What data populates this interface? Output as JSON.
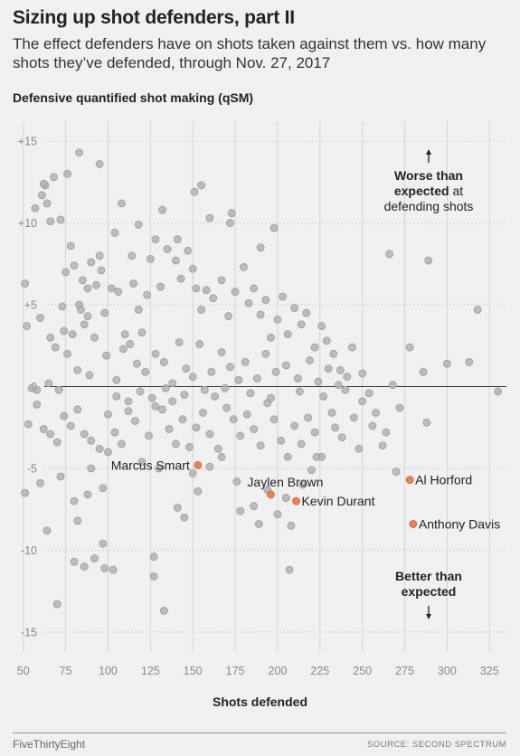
{
  "title": "Sizing up shot defenders, part II",
  "subtitle": "The effect defenders have on shots taken against them vs. how many shots they’ve defended, through Nov. 27, 2017",
  "footer": {
    "brand": "FiveThirtyEight",
    "source": "SOURCE: SECOND SPECTRUM"
  },
  "colors": {
    "background": "#f0f0f0",
    "grey_point": "#b3b3b3",
    "highlight_point": "#e8825a"
  },
  "chart_data": {
    "type": "scatter",
    "ylabel": "Defensive quantified shot making (qSM)",
    "xlabel": "Shots defended",
    "xlim": [
      40,
      335
    ],
    "ylim": [
      -16,
      16
    ],
    "x_ticks": [
      {
        "value": 50,
        "label": "50"
      },
      {
        "value": 75,
        "label": "75"
      },
      {
        "value": 100,
        "label": "100"
      },
      {
        "value": 125,
        "label": "125"
      },
      {
        "value": 150,
        "label": "150"
      },
      {
        "value": 175,
        "label": "175"
      },
      {
        "value": 200,
        "label": "200"
      },
      {
        "value": 225,
        "label": "225"
      },
      {
        "value": 250,
        "label": "250"
      },
      {
        "value": 275,
        "label": "275"
      },
      {
        "value": 300,
        "label": "300"
      },
      {
        "value": 325,
        "label": "325"
      }
    ],
    "y_ticks": [
      {
        "value": 15,
        "label": "+15"
      },
      {
        "value": 10,
        "label": "+10"
      },
      {
        "value": 5,
        "label": "+5"
      },
      {
        "value": 0,
        "label": "0"
      },
      {
        "value": -5,
        "label": "-5"
      },
      {
        "value": -10,
        "label": "-10"
      },
      {
        "value": -15,
        "label": "-15"
      }
    ],
    "grid": "vertical",
    "annotations": [
      {
        "lines": [
          "Worse than",
          "expected at",
          "defending shots"
        ],
        "bold_words": [
          "Worse than",
          "expected"
        ],
        "arrow": "up"
      },
      {
        "lines": [
          "Better than",
          "expected"
        ],
        "bold_words": [
          "Better than",
          "expected"
        ],
        "arrow": "down"
      }
    ],
    "highlighted": [
      {
        "name": "Marcus Smart",
        "x": 153,
        "y": -4.8,
        "label_side": "left"
      },
      {
        "name": "Jaylen Brown",
        "x": 196,
        "y": -6.6,
        "label_side": "above"
      },
      {
        "name": "Kevin Durant",
        "x": 211,
        "y": -7.0,
        "label_side": "right"
      },
      {
        "name": "Al Horford",
        "x": 278,
        "y": -5.7,
        "label_side": "right"
      },
      {
        "name": "Anthony Davis",
        "x": 280,
        "y": -8.4,
        "label_side": "right"
      }
    ],
    "points": [
      [
        63,
        12.3
      ],
      [
        61,
        11.7
      ],
      [
        62,
        12.4
      ],
      [
        68,
        12.8
      ],
      [
        57,
        10.9
      ],
      [
        64,
        11.2
      ],
      [
        66,
        10.1
      ],
      [
        72,
        10.2
      ],
      [
        83,
        14.3
      ],
      [
        95,
        13.6
      ],
      [
        51,
        6.3
      ],
      [
        52,
        3.7
      ],
      [
        60,
        4.2
      ],
      [
        75,
        7.0
      ],
      [
        78,
        8.6
      ],
      [
        80,
        7.4
      ],
      [
        83,
        5.0
      ],
      [
        85,
        6.5
      ],
      [
        88,
        6.0
      ],
      [
        90,
        7.6
      ],
      [
        93,
        6.2
      ],
      [
        95,
        8.0
      ],
      [
        96,
        7.1
      ],
      [
        88,
        4.3
      ],
      [
        84,
        4.7
      ],
      [
        79,
        3.2
      ],
      [
        76,
        2.0
      ],
      [
        82,
        1.0
      ],
      [
        86,
        3.8
      ],
      [
        92,
        3.0
      ],
      [
        98,
        4.5
      ],
      [
        102,
        6.0
      ],
      [
        106,
        5.8
      ],
      [
        110,
        3.2
      ],
      [
        113,
        2.6
      ],
      [
        115,
        6.3
      ],
      [
        118,
        4.7
      ],
      [
        120,
        3.3
      ],
      [
        123,
        5.6
      ],
      [
        125,
        7.8
      ],
      [
        128,
        9.0
      ],
      [
        131,
        6.1
      ],
      [
        135,
        8.4
      ],
      [
        140,
        7.7
      ],
      [
        143,
        6.6
      ],
      [
        147,
        8.3
      ],
      [
        150,
        7.2
      ],
      [
        152,
        6.0
      ],
      [
        155,
        4.7
      ],
      [
        158,
        5.9
      ],
      [
        162,
        5.4
      ],
      [
        167,
        6.5
      ],
      [
        171,
        4.3
      ],
      [
        175,
        5.8
      ],
      [
        180,
        7.3
      ],
      [
        183,
        5.1
      ],
      [
        186,
        6.0
      ],
      [
        190,
        4.4
      ],
      [
        193,
        5.3
      ],
      [
        196,
        3.0
      ],
      [
        200,
        4.1
      ],
      [
        203,
        5.5
      ],
      [
        206,
        3.2
      ],
      [
        210,
        4.8
      ],
      [
        214,
        3.8
      ],
      [
        217,
        4.5
      ],
      [
        222,
        2.4
      ],
      [
        226,
        3.7
      ],
      [
        229,
        2.8
      ],
      [
        233,
        2.0
      ],
      [
        237,
        1.0
      ],
      [
        244,
        2.4
      ],
      [
        250,
        0.8
      ],
      [
        266,
        8.1
      ],
      [
        289,
        7.7
      ],
      [
        278,
        2.4
      ],
      [
        286,
        0.9
      ],
      [
        300,
        1.4
      ],
      [
        313,
        1.5
      ],
      [
        318,
        4.7
      ],
      [
        330,
        -0.3
      ],
      [
        73,
        4.9
      ],
      [
        69,
        2.4
      ],
      [
        71,
        -0.2
      ],
      [
        65,
        0.2
      ],
      [
        58,
        -0.2
      ],
      [
        55,
        -0.1
      ],
      [
        53,
        -2.3
      ],
      [
        58,
        -1.1
      ],
      [
        62,
        -2.6
      ],
      [
        66,
        -2.9
      ],
      [
        70,
        -3.4
      ],
      [
        74,
        -1.8
      ],
      [
        78,
        -2.4
      ],
      [
        82,
        -1.4
      ],
      [
        86,
        -2.9
      ],
      [
        90,
        -3.3
      ],
      [
        95,
        -3.8
      ],
      [
        100,
        -1.7
      ],
      [
        104,
        -2.8
      ],
      [
        108,
        -3.5
      ],
      [
        112,
        -1.5
      ],
      [
        116,
        -2.1
      ],
      [
        120,
        -4.6
      ],
      [
        124,
        -3.0
      ],
      [
        128,
        -1.2
      ],
      [
        132,
        -1.4
      ],
      [
        136,
        -2.6
      ],
      [
        140,
        -3.5
      ],
      [
        144,
        -2.0
      ],
      [
        148,
        -3.7
      ],
      [
        152,
        -2.5
      ],
      [
        156,
        -1.6
      ],
      [
        160,
        -2.9
      ],
      [
        165,
        -3.8
      ],
      [
        170,
        -1.3
      ],
      [
        174,
        -2.0
      ],
      [
        178,
        -3.0
      ],
      [
        182,
        -1.7
      ],
      [
        186,
        -2.6
      ],
      [
        190,
        -3.6
      ],
      [
        194,
        -1.0
      ],
      [
        198,
        -2.0
      ],
      [
        202,
        -3.3
      ],
      [
        206,
        -4.3
      ],
      [
        210,
        -2.4
      ],
      [
        214,
        -3.5
      ],
      [
        218,
        -1.9
      ],
      [
        222,
        -2.8
      ],
      [
        226,
        -4.3
      ],
      [
        232,
        -1.6
      ],
      [
        238,
        -3.1
      ],
      [
        245,
        -1.9
      ],
      [
        250,
        -0.9
      ],
      [
        258,
        -1.6
      ],
      [
        264,
        -2.8
      ],
      [
        272,
        -1.3
      ],
      [
        270,
        -5.2
      ],
      [
        288,
        -2.2
      ],
      [
        262,
        -3.6
      ],
      [
        51,
        -6.5
      ],
      [
        60,
        -5.9
      ],
      [
        64,
        -8.8
      ],
      [
        70,
        -13.3
      ],
      [
        72,
        -5.5
      ],
      [
        80,
        -7.0
      ],
      [
        82,
        -8.2
      ],
      [
        88,
        -6.6
      ],
      [
        80,
        -10.7
      ],
      [
        86,
        -11.0
      ],
      [
        92,
        -10.5
      ],
      [
        97,
        -9.6
      ],
      [
        98,
        -11.1
      ],
      [
        103,
        -11.2
      ],
      [
        90,
        -5.0
      ],
      [
        97,
        -6.2
      ],
      [
        100,
        -4.0
      ],
      [
        127,
        -10.4
      ],
      [
        127,
        -11.6
      ],
      [
        133,
        -13.7
      ],
      [
        130,
        -5.0
      ],
      [
        141,
        -7.4
      ],
      [
        145,
        -8.0
      ],
      [
        150,
        -5.3
      ],
      [
        153,
        -6.4
      ],
      [
        160,
        -4.9
      ],
      [
        167,
        -4.3
      ],
      [
        176,
        -5.8
      ],
      [
        178,
        -7.6
      ],
      [
        186,
        -7.3
      ],
      [
        189,
        -8.4
      ],
      [
        194,
        -6.3
      ],
      [
        200,
        -7.8
      ],
      [
        205,
        -6.8
      ],
      [
        208,
        -8.5
      ],
      [
        215,
        -6.0
      ],
      [
        220,
        -5.1
      ],
      [
        223,
        -4.3
      ],
      [
        207,
        -11.2
      ],
      [
        234,
        -2.5
      ],
      [
        248,
        -3.8
      ],
      [
        256,
        -2.4
      ],
      [
        66,
        3.0
      ],
      [
        74,
        3.4
      ],
      [
        89,
        0.7
      ],
      [
        99,
        1.9
      ],
      [
        105,
        0.4
      ],
      [
        109,
        2.3
      ],
      [
        117,
        1.4
      ],
      [
        122,
        0.9
      ],
      [
        128,
        2.0
      ],
      [
        133,
        1.5
      ],
      [
        138,
        0.2
      ],
      [
        142,
        2.7
      ],
      [
        146,
        1.1
      ],
      [
        150,
        0.6
      ],
      [
        154,
        2.6
      ],
      [
        161,
        0.9
      ],
      [
        167,
        2.1
      ],
      [
        172,
        1.2
      ],
      [
        177,
        0.4
      ],
      [
        181,
        1.5
      ],
      [
        188,
        0.5
      ],
      [
        193,
        2.0
      ],
      [
        199,
        0.9
      ],
      [
        205,
        1.3
      ],
      [
        212,
        0.5
      ],
      [
        219,
        1.6
      ],
      [
        224,
        0.3
      ],
      [
        230,
        1.1
      ],
      [
        236,
        0.1
      ],
      [
        241,
        0.6
      ],
      [
        104,
        9.4
      ],
      [
        114,
        8.0
      ],
      [
        118,
        9.9
      ],
      [
        132,
        10.8
      ],
      [
        141,
        9.0
      ],
      [
        151,
        11.9
      ],
      [
        160,
        10.3
      ],
      [
        172,
        10.0
      ],
      [
        190,
        8.5
      ],
      [
        198,
        9.7
      ],
      [
        105,
        -0.6
      ],
      [
        112,
        -0.9
      ],
      [
        119,
        -0.3
      ],
      [
        126,
        -0.7
      ],
      [
        134,
        -0.1
      ],
      [
        138,
        -0.9
      ],
      [
        145,
        -0.5
      ],
      [
        157,
        -0.2
      ],
      [
        163,
        -0.6
      ],
      [
        169,
        -0.1
      ],
      [
        184,
        -0.4
      ],
      [
        196,
        -0.7
      ],
      [
        213,
        -0.3
      ],
      [
        227,
        -0.6
      ],
      [
        240,
        -0.2
      ],
      [
        254,
        -0.4
      ],
      [
        268,
        0.1
      ],
      [
        108,
        11.2
      ],
      [
        76,
        13.0
      ],
      [
        155,
        12.3
      ],
      [
        173,
        10.6
      ]
    ]
  }
}
